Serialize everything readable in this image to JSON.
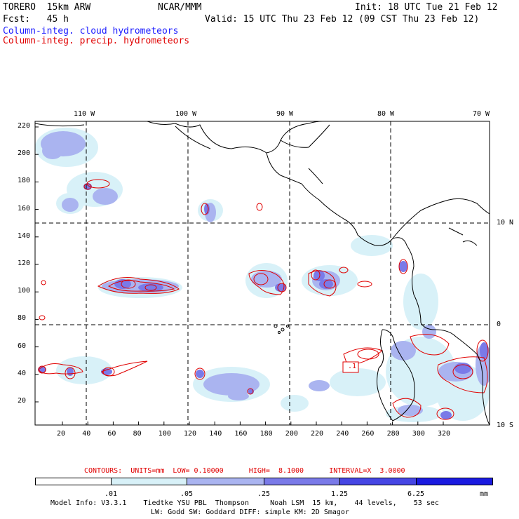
{
  "header": {
    "model": "TORERO  15km ARW",
    "org": "NCAR/MMM",
    "init": "Init: 18 UTC Tue 21 Feb 12",
    "fcst": "Fcst:   45 h",
    "valid": "Valid: 15 UTC Thu 23 Feb 12 (09 CST Thu 23 Feb 12)",
    "legend_cloud": "Column-integ. cloud hydrometeors",
    "legend_precip": "Column-integ. precip. hydrometeors"
  },
  "map": {
    "lon_labels": [
      "110 W",
      "100 W",
      "90 W",
      "80 W",
      "70 W"
    ],
    "lat_labels": [
      "10 N",
      "0",
      "10 S"
    ],
    "y_ticks": [
      "220",
      "200",
      "180",
      "160",
      "140",
      "120",
      "100",
      "80",
      "60",
      "40",
      "20"
    ],
    "x_ticks": [
      "20",
      "40",
      "60",
      "80",
      "100",
      "120",
      "140",
      "160",
      "180",
      "200",
      "220",
      "240",
      "260",
      "280",
      "300",
      "320"
    ],
    "contour_label": ".1"
  },
  "contours": {
    "caption": "CONTOURS:  UNITS=mm  LOW= 0.10000      HIGH=  8.1000      INTERVAL=X  3.0000"
  },
  "colorbar": {
    "labels": [
      ".01",
      ".05",
      ".25",
      "1.25",
      "6.25",
      "mm"
    ],
    "colors": [
      "#ffffff",
      "#d8f1f8",
      "#aab4f0",
      "#7a7ae8",
      "#4646e4",
      "#1a1ae0"
    ]
  },
  "footer": {
    "line1": "Model Info: V3.3.1    Tiedtke YSU PBL  Thompson     Noah LSM  15 km,    44 levels,    53 sec",
    "line2": "LW: Godd SW: Goddard DIFF: simple KM: 2D Smagor"
  }
}
